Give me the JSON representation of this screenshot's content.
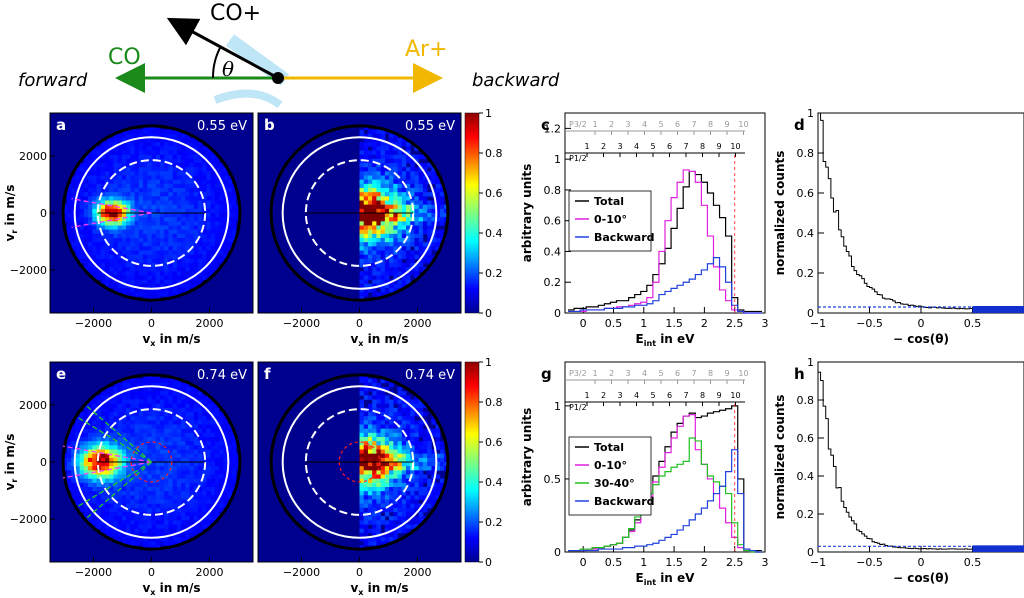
{
  "diagram": {
    "co_plus": "CO+",
    "co": "CO",
    "ar_plus": "Ar+",
    "theta": "θ",
    "forward": "forward",
    "backward": "backward"
  },
  "images": [
    {
      "id": "a",
      "tag": "a",
      "energy": "0.55 eV",
      "xlabel": "vx in m/s",
      "ylabel": "vr in m/s",
      "xticks": [
        "−2000",
        "0",
        "2000"
      ],
      "yticks": [
        "2000",
        "0",
        "−2000"
      ],
      "half": "full",
      "cx": -1350,
      "sigma": 350,
      "lobes": "small"
    },
    {
      "id": "b",
      "tag": "b",
      "energy": "0.55 eV",
      "xlabel": "vx in m/s",
      "ylabel": "",
      "xticks": [
        "−2000",
        "0",
        "2000"
      ],
      "yticks": [],
      "half": "right",
      "cx": 300,
      "sigma": 700,
      "lobes": "none"
    },
    {
      "id": "e",
      "tag": "e",
      "energy": "0.74 eV",
      "xlabel": "vx in m/s",
      "ylabel": "vr in m/s",
      "xticks": [
        "−2000",
        "0",
        "2000"
      ],
      "yticks": [
        "2000",
        "0",
        "−2000"
      ],
      "half": "full",
      "cx": -1750,
      "sigma": 450,
      "lobes": "large"
    },
    {
      "id": "f",
      "tag": "f",
      "energy": "0.74 eV",
      "xlabel": "vx in m/s",
      "ylabel": "",
      "xticks": [
        "−2000",
        "0",
        "2000"
      ],
      "yticks": [],
      "half": "right",
      "cx": 250,
      "sigma": 650,
      "lobes": "none"
    }
  ],
  "colorbar": {
    "ticks": [
      "1",
      "0.8",
      "0.6",
      "0.4",
      "0.2",
      "0"
    ]
  },
  "chart_data": [
    {
      "type": "line",
      "id": "c",
      "tag": "c",
      "xlabel": "E_int in eV",
      "ylabel": "arbitrary units",
      "xlim": [
        -0.3,
        3
      ],
      "ylim": [
        0,
        1.3
      ],
      "xticks": [
        "0",
        "0.5",
        "1",
        "1.5",
        "2",
        "2.5",
        "3"
      ],
      "yticks": [
        "0",
        "0.2",
        "0.4",
        "0.6",
        "0.8",
        "1",
        "1.2"
      ],
      "top_scale": {
        "p32": "P3/2",
        "p12": "P1/2",
        "p32_labels": [
          "1",
          "2",
          "3",
          "4",
          "5",
          "6",
          "7",
          "8",
          "9",
          "10"
        ],
        "p12_labels": [
          "1",
          "2",
          "3",
          "4",
          "5",
          "6",
          "7",
          "8",
          "9",
          "10"
        ]
      },
      "x": [
        -0.2,
        -0.1,
        0,
        0.1,
        0.2,
        0.3,
        0.4,
        0.5,
        0.6,
        0.7,
        0.8,
        0.9,
        1.0,
        1.1,
        1.2,
        1.3,
        1.4,
        1.5,
        1.6,
        1.7,
        1.8,
        1.9,
        2.0,
        2.1,
        2.2,
        2.3,
        2.4,
        2.5,
        2.6,
        2.7,
        2.8,
        2.9
      ],
      "series": [
        {
          "name": "Total",
          "color": "#000000",
          "values": [
            0.02,
            0.03,
            0.03,
            0.04,
            0.04,
            0.05,
            0.06,
            0.07,
            0.08,
            0.08,
            0.1,
            0.12,
            0.14,
            0.18,
            0.25,
            0.32,
            0.42,
            0.55,
            0.68,
            0.82,
            0.92,
            0.9,
            0.85,
            0.78,
            0.7,
            0.62,
            0.5,
            0.1,
            0.02,
            0.01,
            0.01,
            0.01
          ]
        },
        {
          "name": "0-10°",
          "color": "#e020e0",
          "values": [
            0.01,
            0.01,
            0.01,
            0.02,
            0.02,
            0.02,
            0.03,
            0.03,
            0.04,
            0.04,
            0.05,
            0.06,
            0.07,
            0.1,
            0.2,
            0.4,
            0.6,
            0.75,
            0.85,
            0.93,
            0.92,
            0.85,
            0.7,
            0.5,
            0.3,
            0.15,
            0.08,
            0.02,
            0.01,
            0.0,
            0.0,
            0.0
          ]
        },
        {
          "name": "Backward",
          "color": "#2040e0",
          "values": [
            0.01,
            0.01,
            0.02,
            0.02,
            0.02,
            0.02,
            0.03,
            0.03,
            0.03,
            0.04,
            0.04,
            0.05,
            0.05,
            0.06,
            0.08,
            0.12,
            0.14,
            0.16,
            0.18,
            0.2,
            0.22,
            0.25,
            0.28,
            0.32,
            0.36,
            0.3,
            0.2,
            0.05,
            0.01,
            0.0,
            0.0,
            0.0
          ]
        }
      ],
      "vline": 2.5
    },
    {
      "type": "line",
      "id": "g",
      "tag": "g",
      "xlabel": "E_int in eV",
      "ylabel": "arbitrary units",
      "xlim": [
        -0.3,
        3
      ],
      "ylim": [
        0,
        1.3
      ],
      "xticks": [
        "0",
        "0.5",
        "1",
        "1.5",
        "2",
        "2.5",
        "3"
      ],
      "yticks": [
        "0",
        "0.5",
        "1"
      ],
      "top_scale": {
        "p32": "P3/2",
        "p12": "P1/2",
        "p32_labels": [
          "1",
          "2",
          "3",
          "4",
          "5",
          "6",
          "7",
          "8",
          "9",
          "10"
        ],
        "p12_labels": [
          "1",
          "2",
          "3",
          "4",
          "5",
          "6",
          "7",
          "8",
          "9",
          "10"
        ]
      },
      "x": [
        -0.2,
        -0.1,
        0,
        0.1,
        0.2,
        0.3,
        0.4,
        0.5,
        0.6,
        0.7,
        0.8,
        0.9,
        1.0,
        1.1,
        1.2,
        1.3,
        1.4,
        1.5,
        1.6,
        1.7,
        1.8,
        1.9,
        2.0,
        2.1,
        2.2,
        2.3,
        2.4,
        2.5,
        2.6,
        2.7,
        2.8,
        2.9
      ],
      "series": [
        {
          "name": "Total",
          "color": "#000000",
          "values": [
            0.01,
            0.01,
            0.02,
            0.02,
            0.03,
            0.03,
            0.04,
            0.05,
            0.06,
            0.1,
            0.15,
            0.22,
            0.3,
            0.4,
            0.52,
            0.62,
            0.72,
            0.82,
            0.88,
            0.93,
            0.95,
            0.92,
            0.93,
            0.95,
            0.96,
            0.97,
            0.98,
            1.0,
            0.5,
            0.02,
            0.01,
            0.01
          ]
        },
        {
          "name": "0-10°",
          "color": "#e020e0",
          "values": [
            0.01,
            0.01,
            0.01,
            0.02,
            0.02,
            0.03,
            0.04,
            0.05,
            0.06,
            0.1,
            0.14,
            0.2,
            0.28,
            0.38,
            0.48,
            0.58,
            0.68,
            0.78,
            0.86,
            0.93,
            0.94,
            0.7,
            0.6,
            0.5,
            0.4,
            0.3,
            0.2,
            0.1,
            0.03,
            0.01,
            0.0,
            0.0
          ]
        },
        {
          "name": "30-40°",
          "color": "#20c020",
          "values": [
            0.01,
            0.01,
            0.02,
            0.02,
            0.03,
            0.03,
            0.04,
            0.05,
            0.06,
            0.1,
            0.16,
            0.24,
            0.32,
            0.4,
            0.46,
            0.52,
            0.55,
            0.58,
            0.6,
            0.62,
            0.78,
            0.76,
            0.6,
            0.52,
            0.48,
            0.45,
            0.4,
            0.2,
            0.05,
            0.01,
            0.0,
            0.0
          ]
        },
        {
          "name": "Backward",
          "color": "#2040e0",
          "values": [
            0.01,
            0.01,
            0.01,
            0.01,
            0.01,
            0.02,
            0.02,
            0.02,
            0.02,
            0.03,
            0.03,
            0.04,
            0.04,
            0.05,
            0.06,
            0.08,
            0.1,
            0.12,
            0.15,
            0.18,
            0.22,
            0.26,
            0.3,
            0.35,
            0.4,
            0.45,
            0.55,
            0.7,
            0.4,
            0.02,
            0.01,
            0.0
          ]
        }
      ],
      "vline": 2.5
    },
    {
      "type": "line",
      "id": "d",
      "tag": "d",
      "xlabel": "− cos(θ)",
      "ylabel": "normalized counts",
      "xlim": [
        -1,
        1
      ],
      "ylim": [
        0,
        1
      ],
      "xticks": [
        "−1",
        "−0.5",
        "0",
        "0.5"
      ],
      "yticks": [
        "0",
        "0.2",
        "0.4",
        "0.6",
        "0.8",
        "1"
      ],
      "series": [
        {
          "name": "",
          "color": "#000000",
          "decay": 4.5,
          "floor": 0.02
        }
      ],
      "baseline": 0.03
    },
    {
      "type": "line",
      "id": "h",
      "tag": "h",
      "xlabel": "− cos(θ)",
      "ylabel": "normalized counts",
      "xlim": [
        -1,
        1
      ],
      "ylim": [
        0,
        1
      ],
      "xticks": [
        "−1",
        "−0.5",
        "0",
        "0.5"
      ],
      "yticks": [
        "0",
        "0.2",
        "0.4",
        "0.6",
        "0.8",
        "1"
      ],
      "series": [
        {
          "name": "",
          "color": "#000000",
          "decay": 6,
          "floor": 0.015
        }
      ],
      "baseline": 0.03
    }
  ]
}
